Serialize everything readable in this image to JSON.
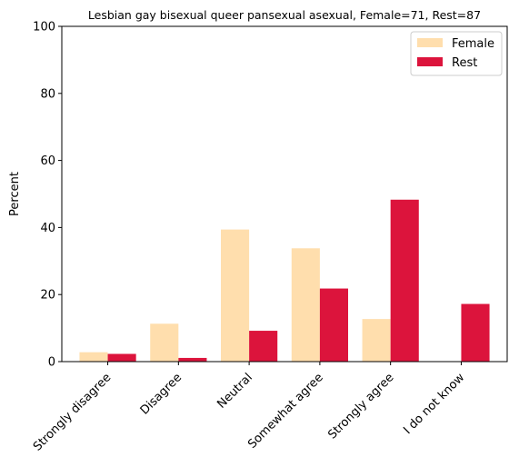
{
  "chart_data": {
    "type": "bar",
    "title": "Lesbian gay bisexual queer pansexual asexual, Female=71, Rest=87",
    "xlabel": "",
    "ylabel": "Percent",
    "ylim": [
      0,
      100
    ],
    "yticks": [
      0,
      20,
      40,
      60,
      80,
      100
    ],
    "grid": false,
    "legend_position": "top-right",
    "categories": [
      "Strongly disagree",
      "Disagree",
      "Neutral",
      "Somewhat agree",
      "Strongly agree",
      "I do not know"
    ],
    "series": [
      {
        "name": "Female",
        "color": "#ffdead",
        "values": [
          2.8,
          11.3,
          39.4,
          33.8,
          12.7,
          0.0
        ]
      },
      {
        "name": "Rest",
        "color": "#dc143c",
        "values": [
          2.3,
          1.1,
          9.2,
          21.8,
          48.3,
          17.2
        ]
      }
    ]
  }
}
